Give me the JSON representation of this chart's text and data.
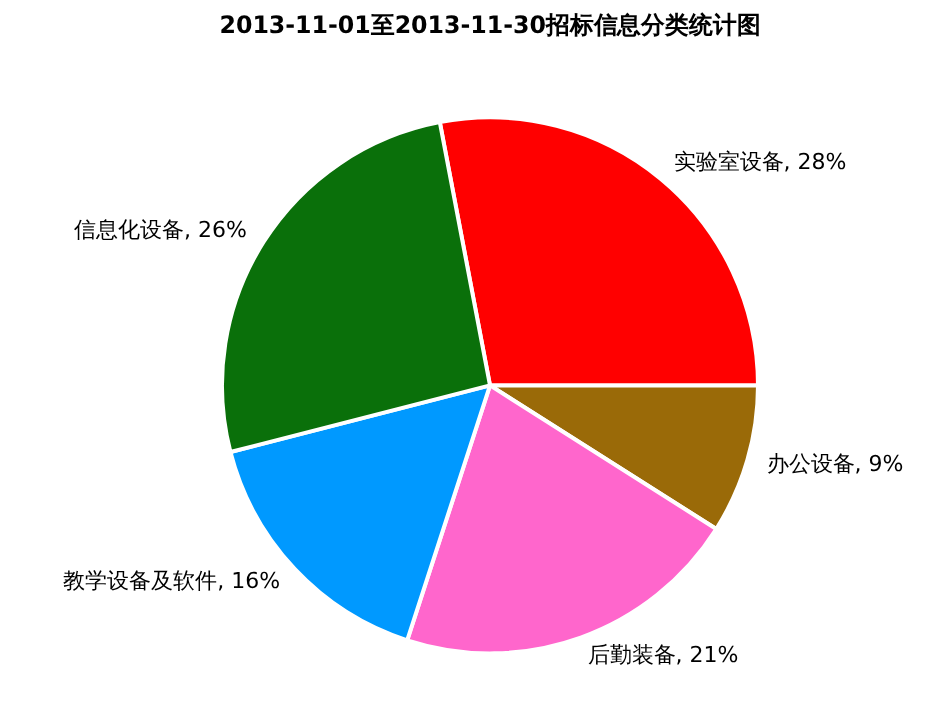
{
  "chart_data": {
    "type": "pie",
    "title": "2013-11-01至2013-11-30招标信息分类统计图",
    "categories": [
      "实验室设备",
      "办公设备",
      "后勤装备",
      "教学设备及软件",
      "信息化设备"
    ],
    "values": [
      28,
      9,
      21,
      16,
      26
    ],
    "colors": [
      "#ff0000",
      "#9a6a08",
      "#ff66cc",
      "#0099ff",
      "#0a700a"
    ],
    "value_labels": [
      "28%",
      "9%",
      "21%",
      "16%",
      "26%"
    ],
    "legend": false
  }
}
